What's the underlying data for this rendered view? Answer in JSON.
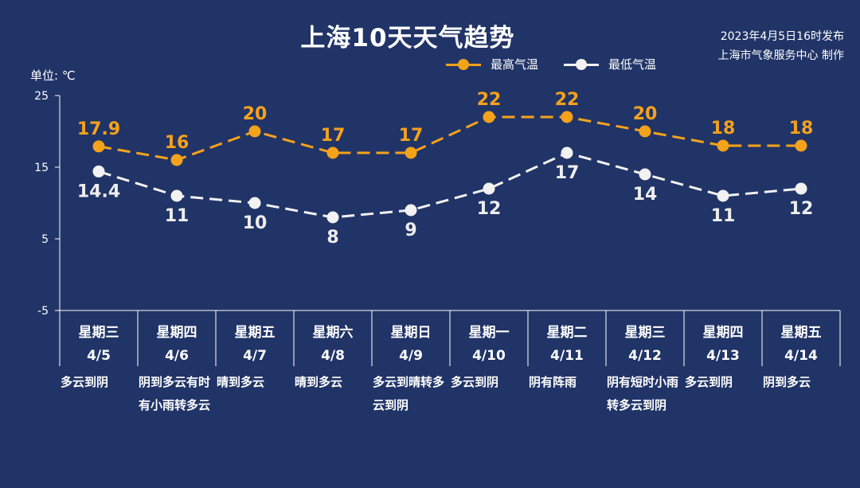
{
  "title": "上海10天天气趋势",
  "publish": {
    "line1": "2023年4月5日16时发布",
    "line2": "上海市气象服务中心 制作"
  },
  "unit_label": "单位: ℃",
  "colors": {
    "high": "#f5a21b",
    "low": "#f2f2f2",
    "background": "#213467"
  },
  "chart_data": {
    "type": "line",
    "title": "上海10天天气趋势",
    "ylabel": "单位: ℃",
    "ylim": [
      -5,
      25
    ],
    "yticks": [
      -5,
      5,
      15,
      25
    ],
    "legend_position": "top-center",
    "grid": false,
    "categories": [
      {
        "weekday": "星期三",
        "date": "4/5",
        "weather": "多云到阴"
      },
      {
        "weekday": "星期四",
        "date": "4/6",
        "weather": "阴到多云有时有小雨转多云"
      },
      {
        "weekday": "星期五",
        "date": "4/7",
        "weather": "晴到多云"
      },
      {
        "weekday": "星期六",
        "date": "4/8",
        "weather": "晴到多云"
      },
      {
        "weekday": "星期日",
        "date": "4/9",
        "weather": "多云到晴转多云到阴"
      },
      {
        "weekday": "星期一",
        "date": "4/10",
        "weather": "多云到阴"
      },
      {
        "weekday": "星期二",
        "date": "4/11",
        "weather": "阴有阵雨"
      },
      {
        "weekday": "星期三",
        "date": "4/12",
        "weather": "阴有短时小雨转多云到阴"
      },
      {
        "weekday": "星期四",
        "date": "4/13",
        "weather": "多云到阴"
      },
      {
        "weekday": "星期五",
        "date": "4/14",
        "weather": "阴到多云"
      }
    ],
    "series": [
      {
        "name": "最高气温",
        "values": [
          17.9,
          16,
          20,
          17,
          17,
          22,
          22,
          20,
          18,
          18
        ]
      },
      {
        "name": "最低气温",
        "values": [
          14.4,
          11,
          10,
          8,
          9,
          12,
          17,
          14,
          11,
          12
        ]
      }
    ]
  }
}
